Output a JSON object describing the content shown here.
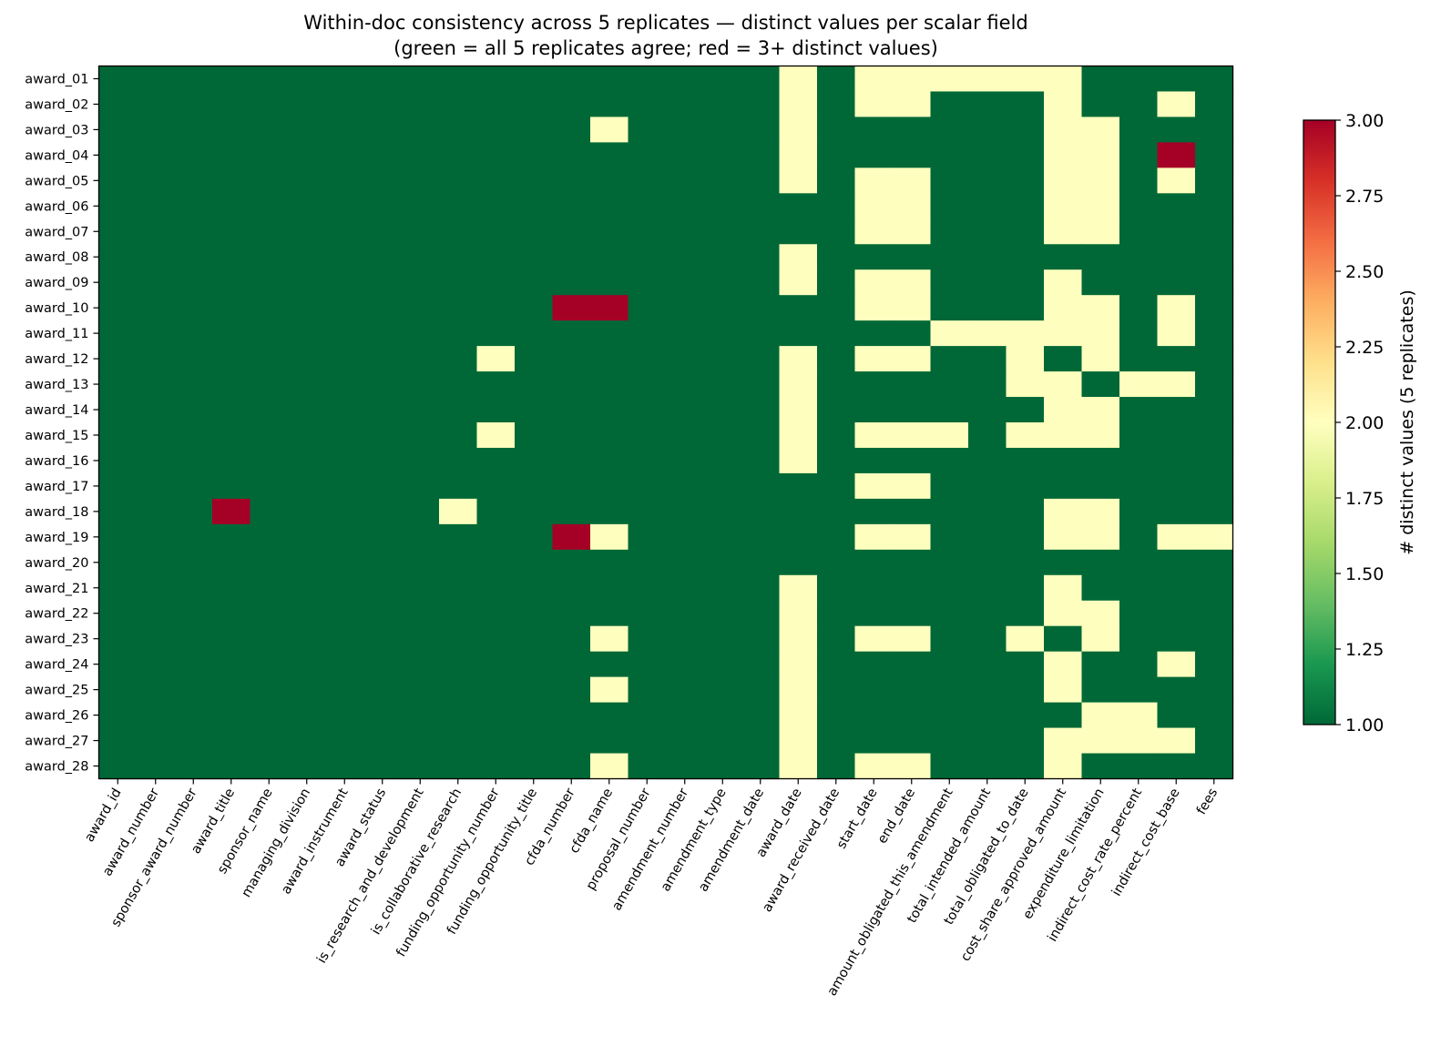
{
  "chart_data": {
    "type": "heatmap",
    "title": "Within-doc consistency across 5 replicates — distinct values per scalar field",
    "subtitle": "(green = all 5 replicates agree; red = 3+ distinct values)",
    "rows": [
      "award_01",
      "award_02",
      "award_03",
      "award_04",
      "award_05",
      "award_06",
      "award_07",
      "award_08",
      "award_09",
      "award_10",
      "award_11",
      "award_12",
      "award_13",
      "award_14",
      "award_15",
      "award_16",
      "award_17",
      "award_18",
      "award_19",
      "award_20",
      "award_21",
      "award_22",
      "award_23",
      "award_24",
      "award_25",
      "award_26",
      "award_27",
      "award_28"
    ],
    "columns": [
      "award_id",
      "award_number",
      "sponsor_award_number",
      "award_title",
      "sponsor_name",
      "managing_division",
      "award_instrument",
      "award_status",
      "is_research_and_development",
      "is_collaborative_research",
      "funding_opportunity_number",
      "funding_opportunity_title",
      "cfda_number",
      "cfda_name",
      "proposal_number",
      "amendment_number",
      "amendment_type",
      "amendment_date",
      "award_date",
      "award_received_date",
      "start_date",
      "end_date",
      "amount_obligated_this_amendment",
      "total_intended_amount",
      "total_obligated_to_date",
      "cost_share_approved_amount",
      "expenditure_limitation",
      "indirect_cost_rate_percent",
      "indirect_cost_base",
      "fees"
    ],
    "values": [
      [
        1,
        1,
        1,
        1,
        1,
        1,
        1,
        1,
        1,
        1,
        1,
        1,
        1,
        1,
        1,
        1,
        1,
        1,
        2,
        1,
        2,
        2,
        2,
        2,
        2,
        2,
        1,
        1,
        1,
        1
      ],
      [
        1,
        1,
        1,
        1,
        1,
        1,
        1,
        1,
        1,
        1,
        1,
        1,
        1,
        1,
        1,
        1,
        1,
        1,
        2,
        1,
        2,
        2,
        1,
        1,
        1,
        2,
        1,
        1,
        2,
        1
      ],
      [
        1,
        1,
        1,
        1,
        1,
        1,
        1,
        1,
        1,
        1,
        1,
        1,
        1,
        2,
        1,
        1,
        1,
        1,
        2,
        1,
        1,
        1,
        1,
        1,
        1,
        2,
        2,
        1,
        1,
        1
      ],
      [
        1,
        1,
        1,
        1,
        1,
        1,
        1,
        1,
        1,
        1,
        1,
        1,
        1,
        1,
        1,
        1,
        1,
        1,
        2,
        1,
        1,
        1,
        1,
        1,
        1,
        2,
        2,
        1,
        3,
        1
      ],
      [
        1,
        1,
        1,
        1,
        1,
        1,
        1,
        1,
        1,
        1,
        1,
        1,
        1,
        1,
        1,
        1,
        1,
        1,
        2,
        1,
        2,
        2,
        1,
        1,
        1,
        2,
        2,
        1,
        2,
        1
      ],
      [
        1,
        1,
        1,
        1,
        1,
        1,
        1,
        1,
        1,
        1,
        1,
        1,
        1,
        1,
        1,
        1,
        1,
        1,
        1,
        1,
        2,
        2,
        1,
        1,
        1,
        2,
        2,
        1,
        1,
        1
      ],
      [
        1,
        1,
        1,
        1,
        1,
        1,
        1,
        1,
        1,
        1,
        1,
        1,
        1,
        1,
        1,
        1,
        1,
        1,
        1,
        1,
        2,
        2,
        1,
        1,
        1,
        2,
        2,
        1,
        1,
        1
      ],
      [
        1,
        1,
        1,
        1,
        1,
        1,
        1,
        1,
        1,
        1,
        1,
        1,
        1,
        1,
        1,
        1,
        1,
        1,
        2,
        1,
        1,
        1,
        1,
        1,
        1,
        1,
        1,
        1,
        1,
        1
      ],
      [
        1,
        1,
        1,
        1,
        1,
        1,
        1,
        1,
        1,
        1,
        1,
        1,
        1,
        1,
        1,
        1,
        1,
        1,
        2,
        1,
        2,
        2,
        1,
        1,
        1,
        2,
        1,
        1,
        1,
        1
      ],
      [
        1,
        1,
        1,
        1,
        1,
        1,
        1,
        1,
        1,
        1,
        1,
        1,
        3,
        3,
        1,
        1,
        1,
        1,
        1,
        1,
        2,
        2,
        1,
        1,
        1,
        2,
        2,
        1,
        2,
        1
      ],
      [
        1,
        1,
        1,
        1,
        1,
        1,
        1,
        1,
        1,
        1,
        1,
        1,
        1,
        1,
        1,
        1,
        1,
        1,
        1,
        1,
        1,
        1,
        2,
        2,
        2,
        2,
        2,
        1,
        2,
        1
      ],
      [
        1,
        1,
        1,
        1,
        1,
        1,
        1,
        1,
        1,
        1,
        2,
        1,
        1,
        1,
        1,
        1,
        1,
        1,
        2,
        1,
        2,
        2,
        1,
        1,
        2,
        1,
        2,
        1,
        1,
        1
      ],
      [
        1,
        1,
        1,
        1,
        1,
        1,
        1,
        1,
        1,
        1,
        1,
        1,
        1,
        1,
        1,
        1,
        1,
        1,
        2,
        1,
        1,
        1,
        1,
        1,
        2,
        2,
        1,
        2,
        2,
        1
      ],
      [
        1,
        1,
        1,
        1,
        1,
        1,
        1,
        1,
        1,
        1,
        1,
        1,
        1,
        1,
        1,
        1,
        1,
        1,
        2,
        1,
        1,
        1,
        1,
        1,
        1,
        2,
        2,
        1,
        1,
        1
      ],
      [
        1,
        1,
        1,
        1,
        1,
        1,
        1,
        1,
        1,
        1,
        2,
        1,
        1,
        1,
        1,
        1,
        1,
        1,
        2,
        1,
        2,
        2,
        2,
        1,
        2,
        2,
        2,
        1,
        1,
        1
      ],
      [
        1,
        1,
        1,
        1,
        1,
        1,
        1,
        1,
        1,
        1,
        1,
        1,
        1,
        1,
        1,
        1,
        1,
        1,
        2,
        1,
        1,
        1,
        1,
        1,
        1,
        1,
        1,
        1,
        1,
        1
      ],
      [
        1,
        1,
        1,
        1,
        1,
        1,
        1,
        1,
        1,
        1,
        1,
        1,
        1,
        1,
        1,
        1,
        1,
        1,
        1,
        1,
        2,
        2,
        1,
        1,
        1,
        1,
        1,
        1,
        1,
        1
      ],
      [
        1,
        1,
        1,
        3,
        1,
        1,
        1,
        1,
        1,
        2,
        1,
        1,
        1,
        1,
        1,
        1,
        1,
        1,
        1,
        1,
        1,
        1,
        1,
        1,
        1,
        2,
        2,
        1,
        1,
        1
      ],
      [
        1,
        1,
        1,
        1,
        1,
        1,
        1,
        1,
        1,
        1,
        1,
        1,
        3,
        2,
        1,
        1,
        1,
        1,
        1,
        1,
        2,
        2,
        1,
        1,
        1,
        2,
        2,
        1,
        2,
        2
      ],
      [
        1,
        1,
        1,
        1,
        1,
        1,
        1,
        1,
        1,
        1,
        1,
        1,
        1,
        1,
        1,
        1,
        1,
        1,
        1,
        1,
        1,
        1,
        1,
        1,
        1,
        1,
        1,
        1,
        1,
        1
      ],
      [
        1,
        1,
        1,
        1,
        1,
        1,
        1,
        1,
        1,
        1,
        1,
        1,
        1,
        1,
        1,
        1,
        1,
        1,
        2,
        1,
        1,
        1,
        1,
        1,
        1,
        2,
        1,
        1,
        1,
        1
      ],
      [
        1,
        1,
        1,
        1,
        1,
        1,
        1,
        1,
        1,
        1,
        1,
        1,
        1,
        1,
        1,
        1,
        1,
        1,
        2,
        1,
        1,
        1,
        1,
        1,
        1,
        2,
        2,
        1,
        1,
        1
      ],
      [
        1,
        1,
        1,
        1,
        1,
        1,
        1,
        1,
        1,
        1,
        1,
        1,
        1,
        2,
        1,
        1,
        1,
        1,
        2,
        1,
        2,
        2,
        1,
        1,
        2,
        1,
        2,
        1,
        1,
        1
      ],
      [
        1,
        1,
        1,
        1,
        1,
        1,
        1,
        1,
        1,
        1,
        1,
        1,
        1,
        1,
        1,
        1,
        1,
        1,
        2,
        1,
        1,
        1,
        1,
        1,
        1,
        2,
        1,
        1,
        2,
        1
      ],
      [
        1,
        1,
        1,
        1,
        1,
        1,
        1,
        1,
        1,
        1,
        1,
        1,
        1,
        2,
        1,
        1,
        1,
        1,
        2,
        1,
        1,
        1,
        1,
        1,
        1,
        2,
        1,
        1,
        1,
        1
      ],
      [
        1,
        1,
        1,
        1,
        1,
        1,
        1,
        1,
        1,
        1,
        1,
        1,
        1,
        1,
        1,
        1,
        1,
        1,
        2,
        1,
        1,
        1,
        1,
        1,
        1,
        1,
        2,
        2,
        1,
        1
      ],
      [
        1,
        1,
        1,
        1,
        1,
        1,
        1,
        1,
        1,
        1,
        1,
        1,
        1,
        1,
        1,
        1,
        1,
        1,
        2,
        1,
        1,
        1,
        1,
        1,
        1,
        2,
        2,
        2,
        2,
        1
      ],
      [
        1,
        1,
        1,
        1,
        1,
        1,
        1,
        1,
        1,
        1,
        1,
        1,
        1,
        2,
        1,
        1,
        1,
        1,
        2,
        1,
        2,
        2,
        1,
        1,
        1,
        2,
        1,
        1,
        1,
        1
      ]
    ],
    "vmin": 1.0,
    "vmax": 3.0,
    "colormap": "RdYlGn_r",
    "colorbar": {
      "label": "# distinct values (5 replicates)",
      "ticks": [
        "1.00",
        "1.25",
        "1.50",
        "1.75",
        "2.00",
        "2.25",
        "2.50",
        "2.75",
        "3.00"
      ]
    },
    "colors": {
      "agree": "#006837",
      "two_values": "#feffbe",
      "three_plus": "#a50026"
    },
    "grid": false,
    "legend": "colorbar-right"
  }
}
